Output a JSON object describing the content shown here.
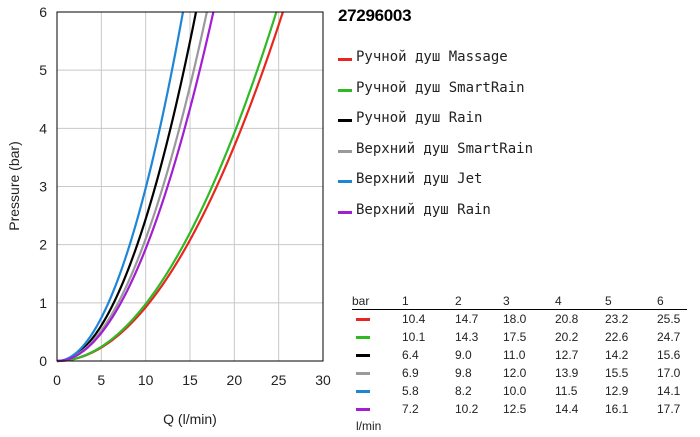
{
  "chart_data": {
    "type": "line",
    "title": "27296003",
    "xlabel": "Q (l/min)",
    "ylabel": "Pressure (bar)",
    "xlim": [
      0,
      30
    ],
    "ylim": [
      0,
      6
    ],
    "xticks": [
      "0",
      "5",
      "10",
      "15",
      "20",
      "25",
      "30"
    ],
    "yticks": [
      "0",
      "1",
      "2",
      "3",
      "4",
      "5",
      "6"
    ],
    "grid": true,
    "legend_position": "right",
    "pressures": [
      1,
      2,
      3,
      4,
      5,
      6
    ],
    "series": [
      {
        "name": "Ручной душ Massage",
        "color": "#e8261f",
        "flows": [
          10.4,
          14.7,
          18.0,
          20.8,
          23.2,
          25.5
        ]
      },
      {
        "name": "Ручной душ SmartRain",
        "color": "#2fba25",
        "flows": [
          10.1,
          14.3,
          17.5,
          20.2,
          22.6,
          24.7
        ]
      },
      {
        "name": "Ручной душ Rain",
        "color": "#000000",
        "flows": [
          6.4,
          9.0,
          11.0,
          12.7,
          14.2,
          15.6
        ]
      },
      {
        "name": "Верхний душ SmartRain",
        "color": "#9a9a9a",
        "flows": [
          6.9,
          9.8,
          12.0,
          13.9,
          15.5,
          17.0
        ]
      },
      {
        "name": "Верхний душ Jet",
        "color": "#1f86d6",
        "flows": [
          5.8,
          8.2,
          10.0,
          11.5,
          12.9,
          14.1
        ]
      },
      {
        "name": "Верхний душ Rain",
        "color": "#a11fd1",
        "flows": [
          7.2,
          10.2,
          12.5,
          14.4,
          16.1,
          17.7
        ]
      }
    ]
  },
  "table": {
    "header_label": "bar",
    "unit_label": "l/min"
  }
}
